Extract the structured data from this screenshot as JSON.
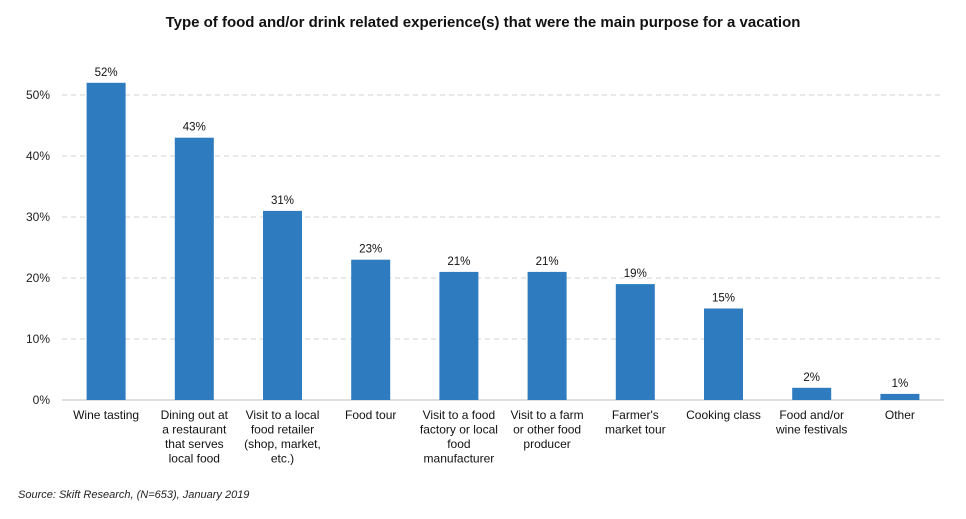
{
  "chart_data": {
    "type": "bar",
    "title": "Type of food and/or drink related experience(s) that were the main purpose for a vacation",
    "categories": [
      "Wine tasting",
      "Dining out at a restaurant that serves local food",
      "Visit to a local food retailer (shop, market, etc.)",
      "Food tour",
      "Visit to a food factory or local food manufacturer",
      "Visit to a farm or other food producer",
      "Farmer's market tour",
      "Cooking class",
      "Food and/or wine festivals",
      "Other"
    ],
    "category_lines": [
      [
        "Wine tasting"
      ],
      [
        "Dining out at",
        "a restaurant",
        "that serves",
        "local food"
      ],
      [
        "Visit to a local",
        "food retailer",
        "(shop, market,",
        "etc.)"
      ],
      [
        "Food tour"
      ],
      [
        "Visit to a food",
        "factory or local",
        "food",
        "manufacturer"
      ],
      [
        "Visit to a farm",
        "or other food",
        "producer"
      ],
      [
        "Farmer's",
        "market tour"
      ],
      [
        "Cooking class"
      ],
      [
        "Food and/or",
        "wine festivals"
      ],
      [
        "Other"
      ]
    ],
    "values": [
      52,
      43,
      31,
      23,
      21,
      21,
      19,
      15,
      2,
      1
    ],
    "data_labels": [
      "52%",
      "43%",
      "31%",
      "23%",
      "21%",
      "21%",
      "19%",
      "15%",
      "2%",
      "1%"
    ],
    "yticks": [
      0,
      10,
      20,
      30,
      40,
      50
    ],
    "ytick_labels": [
      "0%",
      "10%",
      "20%",
      "30%",
      "40%",
      "50%"
    ],
    "ylim": [
      0,
      55
    ],
    "xlabel": "",
    "ylabel": "",
    "grid": true,
    "bar_color": "#2e7bbf",
    "grid_color": "#d0d0d0"
  },
  "source": "Source: Skift Research, (N=653), January 2019"
}
